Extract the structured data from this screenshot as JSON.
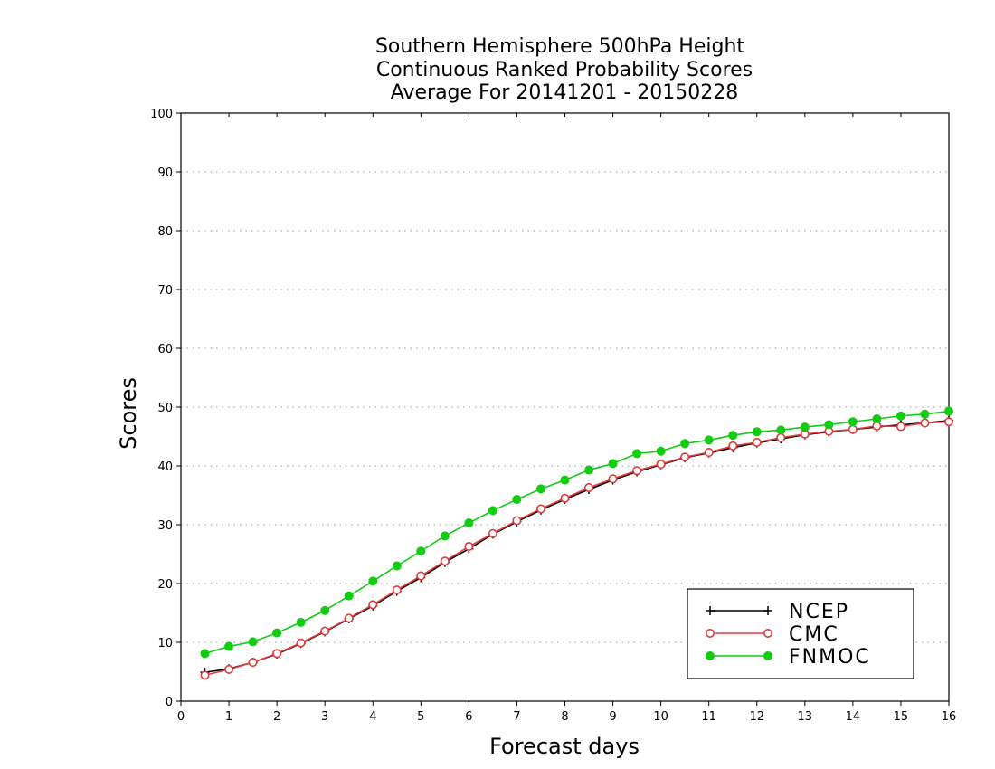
{
  "chart_data": {
    "type": "line",
    "title_lines": [
      "Southern Hemisphere 500hPa Height",
      "Continuous Ranked Probability Scores",
      "Average For 20141201 - 20150228"
    ],
    "xlabel": "Forecast days",
    "ylabel": "Scores",
    "xlim": [
      0,
      16
    ],
    "ylim": [
      0,
      100
    ],
    "xticks": [
      0,
      1,
      2,
      3,
      4,
      5,
      6,
      7,
      8,
      9,
      10,
      11,
      12,
      13,
      14,
      15,
      16
    ],
    "yticks": [
      0,
      10,
      20,
      30,
      40,
      50,
      60,
      70,
      80,
      90,
      100
    ],
    "grid": "dotted-horizontal",
    "legend_position": "bottom-right",
    "x": [
      0.5,
      1,
      1.5,
      2,
      2.5,
      3,
      3.5,
      4,
      4.5,
      5,
      5.5,
      6,
      6.5,
      7,
      7.5,
      8,
      8.5,
      9,
      9.5,
      10,
      10.5,
      11,
      11.5,
      12,
      12.5,
      13,
      13.5,
      14,
      14.5,
      15,
      15.5,
      16
    ],
    "series": [
      {
        "name": "NCEP",
        "color": "#000000",
        "marker": "plus",
        "values": [
          4.9,
          5.5,
          6.6,
          8.0,
          9.8,
          11.8,
          14.0,
          16.2,
          18.7,
          21.0,
          23.6,
          25.9,
          28.4,
          30.5,
          32.5,
          34.3,
          36.0,
          37.6,
          39.0,
          40.2,
          41.4,
          42.2,
          43.1,
          43.9,
          44.6,
          45.3,
          45.8,
          46.2,
          46.6,
          47.0,
          47.3,
          47.7
        ]
      },
      {
        "name": "CMC",
        "color": "#e03a3a",
        "marker": "open-circle",
        "values": [
          4.4,
          5.4,
          6.6,
          8.1,
          9.9,
          11.9,
          14.1,
          16.4,
          18.9,
          21.3,
          23.8,
          26.3,
          28.5,
          30.7,
          32.7,
          34.5,
          36.3,
          37.8,
          39.2,
          40.3,
          41.5,
          42.3,
          43.4,
          44.0,
          44.8,
          45.4,
          45.9,
          46.2,
          46.8,
          46.7,
          47.3,
          47.5
        ]
      },
      {
        "name": "FNMOC",
        "color": "#11cc11",
        "marker": "filled-circle",
        "values": [
          8.1,
          9.3,
          10.1,
          11.6,
          13.4,
          15.4,
          17.9,
          20.4,
          23.0,
          25.5,
          28.1,
          30.3,
          32.4,
          34.3,
          36.1,
          37.6,
          39.3,
          40.4,
          42.1,
          42.5,
          43.8,
          44.4,
          45.2,
          45.8,
          46.1,
          46.6,
          47.0,
          47.5,
          48.0,
          48.5,
          48.8,
          49.3
        ]
      }
    ]
  }
}
